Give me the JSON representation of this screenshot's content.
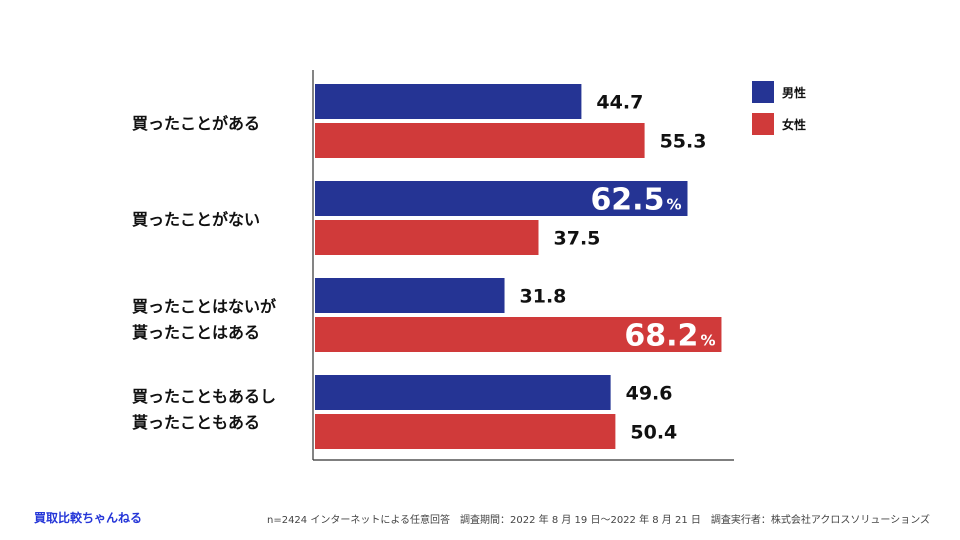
{
  "chart_data": {
    "type": "bar",
    "orientation": "horizontal",
    "categories": [
      [
        "買ったことがある"
      ],
      [
        "買ったことがない"
      ],
      [
        "買ったことはないが",
        "貰ったことはある"
      ],
      [
        "買ったこともあるし",
        "貰ったこともある"
      ]
    ],
    "series": [
      {
        "name": "男性",
        "color": "#253494",
        "values": [
          44.7,
          62.5,
          31.8,
          49.6
        ]
      },
      {
        "name": "女性",
        "color": "#d03a3a",
        "values": [
          55.3,
          37.5,
          68.2,
          50.4
        ]
      }
    ],
    "highlight_unit": "%",
    "xlim": [
      0,
      70
    ],
    "legend_position": "top-right"
  },
  "footer": {
    "brand": "買取比較ちゃんねる",
    "note": "n=2424 インターネットによる任意回答　調査期間：2022 年 8 月 19 日〜2022 年 8 月 21 日　調査実行者：株式会社アクロスソリューションズ"
  }
}
